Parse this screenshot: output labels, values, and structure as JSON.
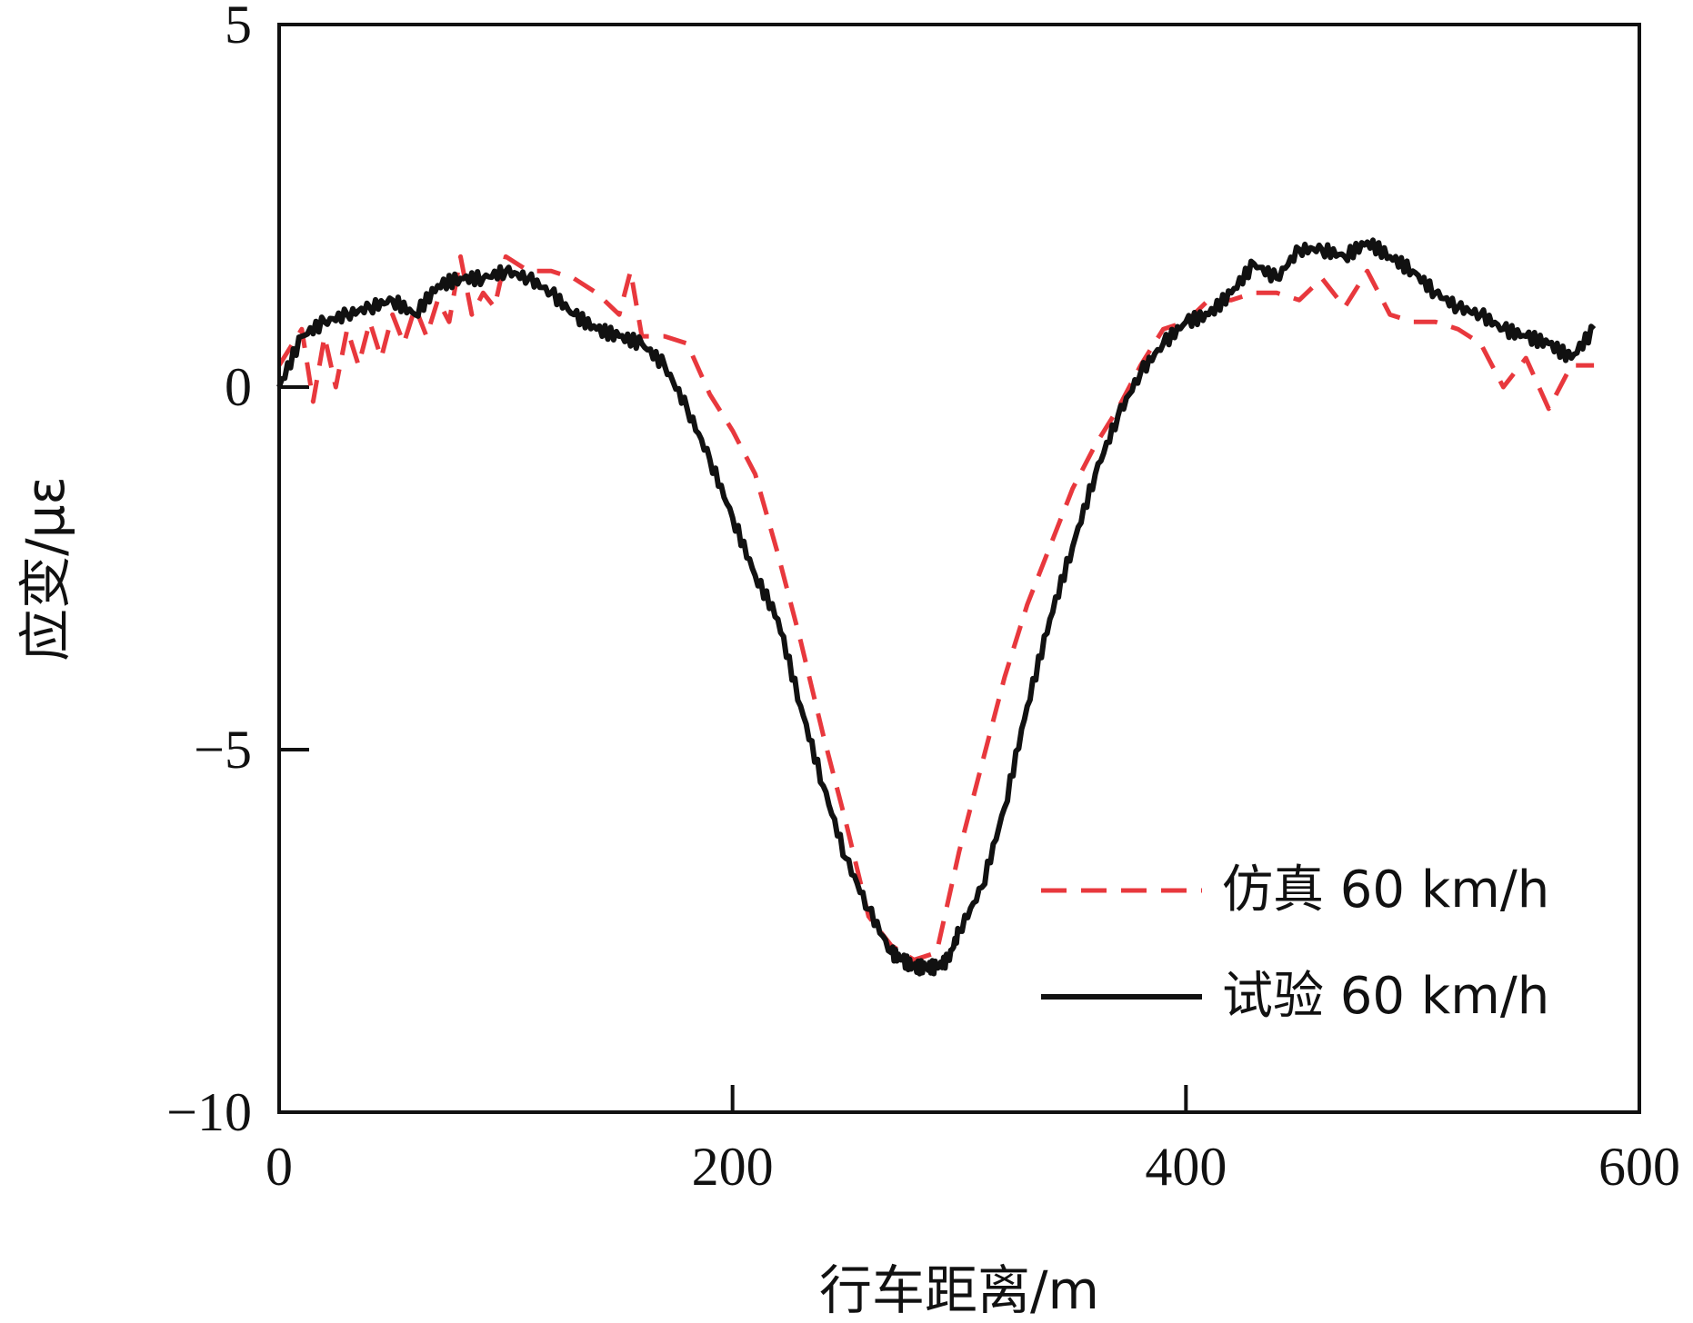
{
  "chart_data": {
    "type": "line",
    "title": "",
    "xlabel": "行车距离/m",
    "ylabel": "应变/με",
    "xlim": [
      0,
      600
    ],
    "ylim": [
      -10,
      5
    ],
    "x_ticks": [
      0,
      200,
      400,
      600
    ],
    "y_ticks": [
      5,
      0,
      -5,
      -10
    ],
    "x_tick_labels": [
      "0",
      "200",
      "400",
      "600"
    ],
    "y_tick_labels": [
      "5",
      "0",
      "−5",
      "−10"
    ],
    "grid": false,
    "legend_position": "lower-right",
    "series": [
      {
        "name": "仿真 60 km/h",
        "color": "#e8383d",
        "style": "dashed",
        "x": [
          0,
          10,
          15,
          20,
          25,
          30,
          35,
          40,
          45,
          50,
          55,
          60,
          65,
          70,
          75,
          80,
          85,
          90,
          95,
          100,
          110,
          120,
          130,
          140,
          150,
          155,
          160,
          170,
          180,
          190,
          200,
          210,
          220,
          230,
          240,
          250,
          260,
          270,
          280,
          290,
          300,
          310,
          320,
          330,
          340,
          350,
          360,
          370,
          380,
          390,
          400,
          410,
          420,
          430,
          440,
          450,
          460,
          470,
          480,
          490,
          500,
          510,
          520,
          530,
          540,
          550,
          560,
          570,
          580
        ],
        "y": [
          0.3,
          0.8,
          -0.2,
          0.7,
          0.0,
          0.8,
          0.3,
          0.9,
          0.4,
          1.0,
          0.6,
          1.1,
          0.7,
          1.2,
          0.9,
          1.8,
          1.0,
          1.3,
          1.1,
          1.8,
          1.6,
          1.6,
          1.5,
          1.3,
          1.0,
          1.6,
          0.7,
          0.7,
          0.6,
          -0.1,
          -0.6,
          -1.2,
          -2.3,
          -3.5,
          -4.8,
          -6.0,
          -7.3,
          -7.7,
          -7.9,
          -7.8,
          -6.4,
          -5.2,
          -4.0,
          -3.0,
          -2.2,
          -1.4,
          -0.8,
          -0.3,
          0.3,
          0.8,
          0.9,
          1.2,
          1.2,
          1.3,
          1.3,
          1.2,
          1.5,
          1.1,
          1.6,
          1.0,
          0.9,
          0.9,
          0.8,
          0.6,
          0.0,
          0.4,
          -0.3,
          0.3,
          0.3
        ]
      },
      {
        "name": "试验 60 km/h",
        "color": "#111111",
        "style": "solid",
        "x": [
          0,
          10,
          20,
          30,
          40,
          50,
          60,
          70,
          80,
          90,
          100,
          110,
          120,
          130,
          140,
          150,
          160,
          170,
          180,
          190,
          200,
          210,
          220,
          230,
          240,
          250,
          260,
          270,
          275,
          280,
          285,
          290,
          295,
          300,
          310,
          320,
          330,
          340,
          350,
          360,
          370,
          380,
          390,
          400,
          410,
          420,
          430,
          440,
          450,
          460,
          470,
          480,
          490,
          500,
          510,
          520,
          530,
          540,
          550,
          560,
          570,
          580
        ],
        "y": [
          0.0,
          0.7,
          0.9,
          1.0,
          1.1,
          1.2,
          1.0,
          1.4,
          1.5,
          1.5,
          1.6,
          1.5,
          1.3,
          1.0,
          0.8,
          0.7,
          0.6,
          0.3,
          -0.3,
          -1.0,
          -1.8,
          -2.6,
          -3.2,
          -4.4,
          -5.5,
          -6.5,
          -7.2,
          -7.8,
          -7.9,
          -8.0,
          -8.0,
          -8.0,
          -7.9,
          -7.5,
          -6.9,
          -5.8,
          -4.4,
          -3.2,
          -2.2,
          -1.2,
          -0.4,
          0.2,
          0.6,
          0.9,
          1.0,
          1.3,
          1.7,
          1.5,
          1.9,
          1.9,
          1.8,
          2.0,
          1.8,
          1.6,
          1.3,
          1.1,
          1.0,
          0.8,
          0.7,
          0.6,
          0.4,
          0.8
        ]
      }
    ]
  }
}
